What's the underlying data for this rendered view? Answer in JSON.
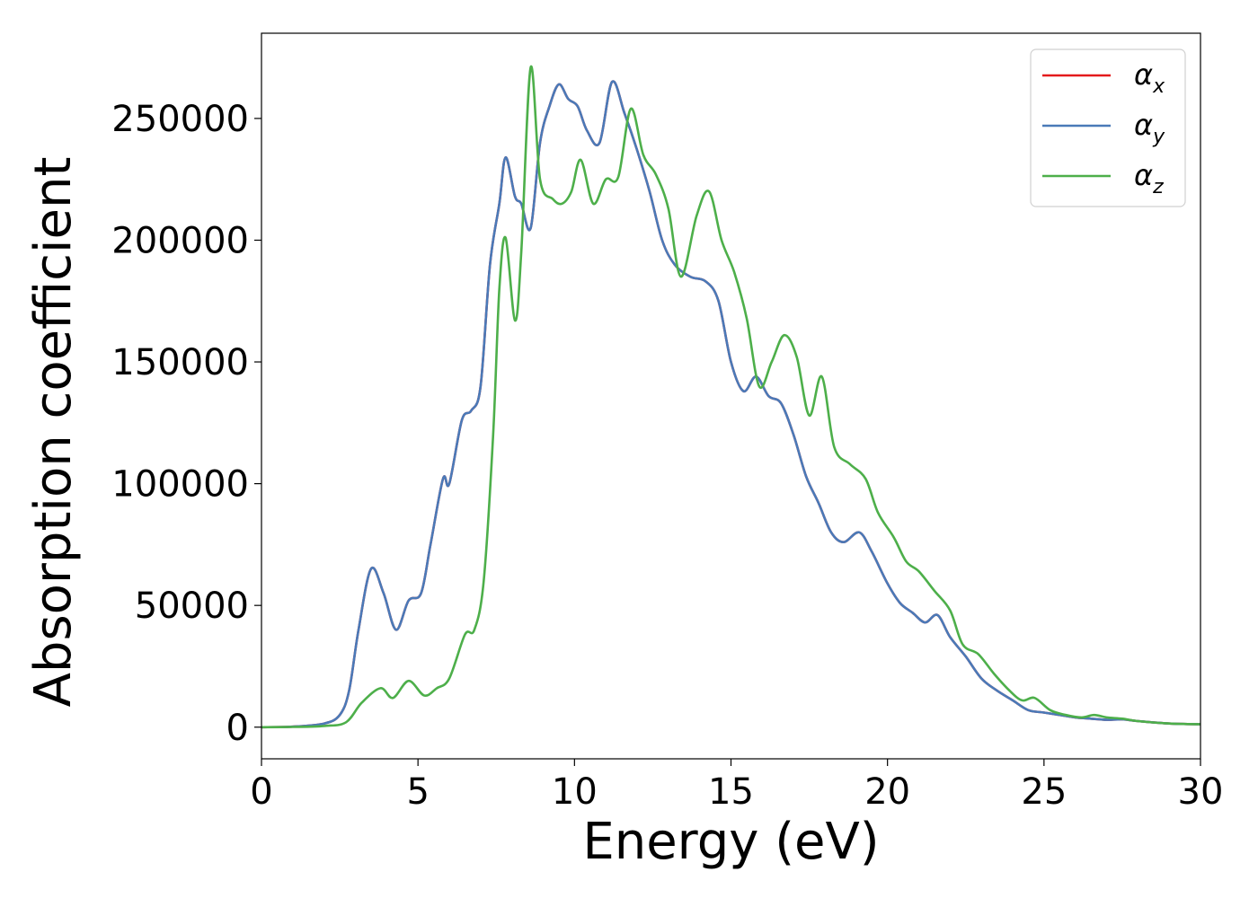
{
  "chart_data": {
    "type": "line",
    "title": "",
    "xlabel": "Energy (eV)",
    "ylabel": "Absorption coefficient",
    "xlim": [
      0,
      30
    ],
    "ylim": [
      -13000,
      285000
    ],
    "xticks": [
      0,
      5,
      10,
      15,
      20,
      25,
      30
    ],
    "yticks": [
      0,
      50000,
      100000,
      150000,
      200000,
      250000
    ],
    "xtick_labels": [
      "0",
      "5",
      "10",
      "15",
      "20",
      "25",
      "30"
    ],
    "ytick_labels": [
      "0",
      "50000",
      "100000",
      "150000",
      "200000",
      "250000"
    ],
    "grid": false,
    "legend_position": "top-right",
    "series": [
      {
        "name": "α",
        "subscript": "x",
        "color": "#e41a1c",
        "points": [
          [
            0,
            0
          ],
          [
            1,
            200
          ],
          [
            2,
            1500
          ],
          [
            2.5,
            5000
          ],
          [
            2.8,
            15000
          ],
          [
            3.1,
            40000
          ],
          [
            3.5,
            65000
          ],
          [
            3.9,
            55000
          ],
          [
            4.3,
            40000
          ],
          [
            4.7,
            52000
          ],
          [
            5.1,
            55000
          ],
          [
            5.4,
            75000
          ],
          [
            5.8,
            102000
          ],
          [
            6.0,
            100000
          ],
          [
            6.4,
            126000
          ],
          [
            6.7,
            130000
          ],
          [
            7.0,
            140000
          ],
          [
            7.3,
            190000
          ],
          [
            7.6,
            215000
          ],
          [
            7.8,
            234000
          ],
          [
            8.1,
            218000
          ],
          [
            8.3,
            215000
          ],
          [
            8.6,
            205000
          ],
          [
            8.9,
            240000
          ],
          [
            9.2,
            255000
          ],
          [
            9.5,
            264000
          ],
          [
            9.8,
            258000
          ],
          [
            10.1,
            255000
          ],
          [
            10.4,
            245000
          ],
          [
            10.8,
            240000
          ],
          [
            11.2,
            265000
          ],
          [
            11.6,
            252000
          ],
          [
            12.0,
            237000
          ],
          [
            12.4,
            220000
          ],
          [
            12.8,
            200000
          ],
          [
            13.2,
            190000
          ],
          [
            13.7,
            185000
          ],
          [
            14.2,
            183000
          ],
          [
            14.6,
            175000
          ],
          [
            15.0,
            150000
          ],
          [
            15.4,
            138000
          ],
          [
            15.8,
            144000
          ],
          [
            16.2,
            136000
          ],
          [
            16.6,
            133000
          ],
          [
            17.0,
            120000
          ],
          [
            17.4,
            103000
          ],
          [
            17.8,
            92000
          ],
          [
            18.2,
            80000
          ],
          [
            18.6,
            76000
          ],
          [
            19.1,
            80000
          ],
          [
            19.5,
            72000
          ],
          [
            20.0,
            59000
          ],
          [
            20.4,
            51000
          ],
          [
            20.8,
            47000
          ],
          [
            21.2,
            43000
          ],
          [
            21.6,
            46000
          ],
          [
            22.0,
            37000
          ],
          [
            22.5,
            29000
          ],
          [
            23.0,
            20000
          ],
          [
            23.5,
            15000
          ],
          [
            24.0,
            11000
          ],
          [
            24.5,
            7000
          ],
          [
            25.0,
            6000
          ],
          [
            25.5,
            5000
          ],
          [
            26.0,
            4000
          ],
          [
            26.5,
            3500
          ],
          [
            27.0,
            3000
          ],
          [
            27.5,
            3200
          ],
          [
            28.0,
            2500
          ],
          [
            29.0,
            1500
          ],
          [
            30,
            1200
          ]
        ]
      },
      {
        "name": "α",
        "subscript": "y",
        "color": "#4a7ab8",
        "points": [
          [
            0,
            0
          ],
          [
            1,
            200
          ],
          [
            2,
            1500
          ],
          [
            2.5,
            5000
          ],
          [
            2.8,
            15000
          ],
          [
            3.1,
            40000
          ],
          [
            3.5,
            65000
          ],
          [
            3.9,
            55000
          ],
          [
            4.3,
            40000
          ],
          [
            4.7,
            52000
          ],
          [
            5.1,
            55000
          ],
          [
            5.4,
            75000
          ],
          [
            5.8,
            102000
          ],
          [
            6.0,
            100000
          ],
          [
            6.4,
            126000
          ],
          [
            6.7,
            130000
          ],
          [
            7.0,
            140000
          ],
          [
            7.3,
            190000
          ],
          [
            7.6,
            215000
          ],
          [
            7.8,
            234000
          ],
          [
            8.1,
            218000
          ],
          [
            8.3,
            215000
          ],
          [
            8.6,
            205000
          ],
          [
            8.9,
            240000
          ],
          [
            9.2,
            255000
          ],
          [
            9.5,
            264000
          ],
          [
            9.8,
            258000
          ],
          [
            10.1,
            255000
          ],
          [
            10.4,
            245000
          ],
          [
            10.8,
            240000
          ],
          [
            11.2,
            265000
          ],
          [
            11.6,
            252000
          ],
          [
            12.0,
            237000
          ],
          [
            12.4,
            220000
          ],
          [
            12.8,
            200000
          ],
          [
            13.2,
            190000
          ],
          [
            13.7,
            185000
          ],
          [
            14.2,
            183000
          ],
          [
            14.6,
            175000
          ],
          [
            15.0,
            150000
          ],
          [
            15.4,
            138000
          ],
          [
            15.8,
            144000
          ],
          [
            16.2,
            136000
          ],
          [
            16.6,
            133000
          ],
          [
            17.0,
            120000
          ],
          [
            17.4,
            103000
          ],
          [
            17.8,
            92000
          ],
          [
            18.2,
            80000
          ],
          [
            18.6,
            76000
          ],
          [
            19.1,
            80000
          ],
          [
            19.5,
            72000
          ],
          [
            20.0,
            59000
          ],
          [
            20.4,
            51000
          ],
          [
            20.8,
            47000
          ],
          [
            21.2,
            43000
          ],
          [
            21.6,
            46000
          ],
          [
            22.0,
            37000
          ],
          [
            22.5,
            29000
          ],
          [
            23.0,
            20000
          ],
          [
            23.5,
            15000
          ],
          [
            24.0,
            11000
          ],
          [
            24.5,
            7000
          ],
          [
            25.0,
            6000
          ],
          [
            25.5,
            5000
          ],
          [
            26.0,
            4000
          ],
          [
            26.5,
            3500
          ],
          [
            27.0,
            3000
          ],
          [
            27.5,
            3200
          ],
          [
            28.0,
            2500
          ],
          [
            29.0,
            1500
          ],
          [
            30,
            1200
          ]
        ]
      },
      {
        "name": "α",
        "subscript": "z",
        "color": "#4daf4a",
        "points": [
          [
            0,
            0
          ],
          [
            1,
            100
          ],
          [
            2,
            500
          ],
          [
            2.7,
            2000
          ],
          [
            3.2,
            10000
          ],
          [
            3.8,
            16000
          ],
          [
            4.2,
            12000
          ],
          [
            4.7,
            19000
          ],
          [
            5.2,
            13000
          ],
          [
            5.6,
            16000
          ],
          [
            6.0,
            20000
          ],
          [
            6.5,
            38000
          ],
          [
            6.8,
            40000
          ],
          [
            7.1,
            60000
          ],
          [
            7.4,
            120000
          ],
          [
            7.6,
            180000
          ],
          [
            7.8,
            201000
          ],
          [
            8.1,
            167000
          ],
          [
            8.3,
            195000
          ],
          [
            8.6,
            271000
          ],
          [
            8.9,
            225000
          ],
          [
            9.3,
            217000
          ],
          [
            9.6,
            215000
          ],
          [
            9.9,
            220000
          ],
          [
            10.2,
            233000
          ],
          [
            10.6,
            215000
          ],
          [
            11.0,
            225000
          ],
          [
            11.4,
            226000
          ],
          [
            11.8,
            254000
          ],
          [
            12.2,
            235000
          ],
          [
            12.6,
            227000
          ],
          [
            13.0,
            213000
          ],
          [
            13.4,
            185000
          ],
          [
            13.9,
            210000
          ],
          [
            14.3,
            220000
          ],
          [
            14.7,
            200000
          ],
          [
            15.1,
            187000
          ],
          [
            15.5,
            168000
          ],
          [
            15.9,
            140000
          ],
          [
            16.3,
            150000
          ],
          [
            16.7,
            161000
          ],
          [
            17.1,
            152000
          ],
          [
            17.5,
            128000
          ],
          [
            17.9,
            144000
          ],
          [
            18.3,
            115000
          ],
          [
            18.8,
            108000
          ],
          [
            19.3,
            102000
          ],
          [
            19.7,
            88000
          ],
          [
            20.2,
            78000
          ],
          [
            20.6,
            68000
          ],
          [
            21.0,
            64000
          ],
          [
            21.5,
            56000
          ],
          [
            22.0,
            48000
          ],
          [
            22.4,
            34000
          ],
          [
            22.9,
            30000
          ],
          [
            23.4,
            22000
          ],
          [
            23.9,
            15000
          ],
          [
            24.3,
            11000
          ],
          [
            24.7,
            12000
          ],
          [
            25.2,
            7000
          ],
          [
            25.7,
            5000
          ],
          [
            26.2,
            4000
          ],
          [
            26.6,
            5000
          ],
          [
            27.0,
            4000
          ],
          [
            27.5,
            3500
          ],
          [
            28.0,
            2500
          ],
          [
            29.0,
            1500
          ],
          [
            30,
            1200
          ]
        ]
      }
    ]
  }
}
